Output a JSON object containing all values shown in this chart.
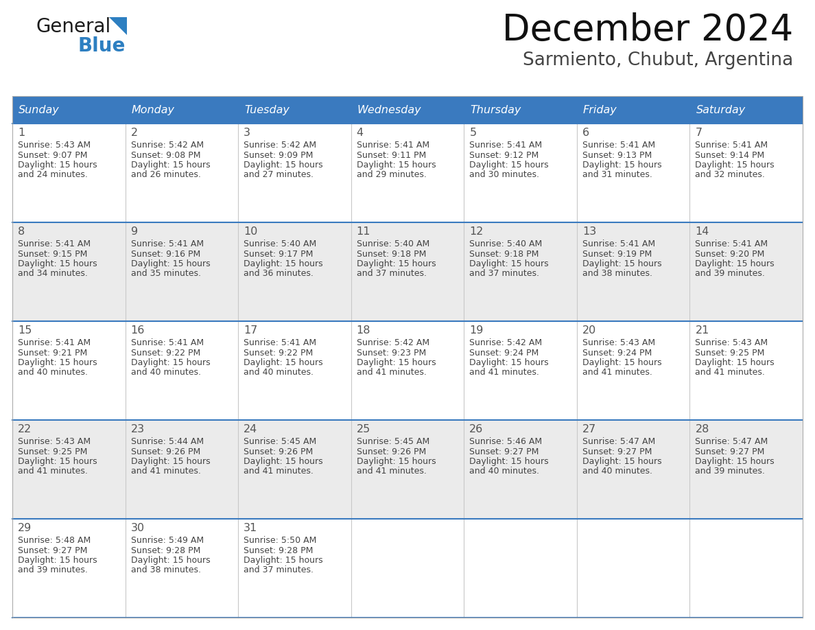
{
  "title": "December 2024",
  "subtitle": "Sarmiento, Chubut, Argentina",
  "header_bg_color": "#3a7abf",
  "header_text_color": "#ffffff",
  "header_font_size": 11.5,
  "day_names": [
    "Sunday",
    "Monday",
    "Tuesday",
    "Wednesday",
    "Thursday",
    "Friday",
    "Saturday"
  ],
  "title_font_size": 38,
  "subtitle_font_size": 19,
  "bg_color": "#ffffff",
  "row_bg_even": "#ebebeb",
  "row_bg_odd": "#ffffff",
  "separator_color": "#3a7abf",
  "cell_text_color": "#444444",
  "cell_day_color": "#555555",
  "logo_text_general": "General",
  "logo_text_blue": "Blue",
  "logo_triangle_color": "#2d7fc1",
  "logo_general_color": "#1a1a1a",
  "logo_blue_color": "#2d7fc1",
  "days": [
    {
      "day": 1,
      "row": 0,
      "col": 0,
      "sunrise": "5:43 AM",
      "sunset": "9:07 PM",
      "daylight_hours": 15,
      "daylight_minutes": 24
    },
    {
      "day": 2,
      "row": 0,
      "col": 1,
      "sunrise": "5:42 AM",
      "sunset": "9:08 PM",
      "daylight_hours": 15,
      "daylight_minutes": 26
    },
    {
      "day": 3,
      "row": 0,
      "col": 2,
      "sunrise": "5:42 AM",
      "sunset": "9:09 PM",
      "daylight_hours": 15,
      "daylight_minutes": 27
    },
    {
      "day": 4,
      "row": 0,
      "col": 3,
      "sunrise": "5:41 AM",
      "sunset": "9:11 PM",
      "daylight_hours": 15,
      "daylight_minutes": 29
    },
    {
      "day": 5,
      "row": 0,
      "col": 4,
      "sunrise": "5:41 AM",
      "sunset": "9:12 PM",
      "daylight_hours": 15,
      "daylight_minutes": 30
    },
    {
      "day": 6,
      "row": 0,
      "col": 5,
      "sunrise": "5:41 AM",
      "sunset": "9:13 PM",
      "daylight_hours": 15,
      "daylight_minutes": 31
    },
    {
      "day": 7,
      "row": 0,
      "col": 6,
      "sunrise": "5:41 AM",
      "sunset": "9:14 PM",
      "daylight_hours": 15,
      "daylight_minutes": 32
    },
    {
      "day": 8,
      "row": 1,
      "col": 0,
      "sunrise": "5:41 AM",
      "sunset": "9:15 PM",
      "daylight_hours": 15,
      "daylight_minutes": 34
    },
    {
      "day": 9,
      "row": 1,
      "col": 1,
      "sunrise": "5:41 AM",
      "sunset": "9:16 PM",
      "daylight_hours": 15,
      "daylight_minutes": 35
    },
    {
      "day": 10,
      "row": 1,
      "col": 2,
      "sunrise": "5:40 AM",
      "sunset": "9:17 PM",
      "daylight_hours": 15,
      "daylight_minutes": 36
    },
    {
      "day": 11,
      "row": 1,
      "col": 3,
      "sunrise": "5:40 AM",
      "sunset": "9:18 PM",
      "daylight_hours": 15,
      "daylight_minutes": 37
    },
    {
      "day": 12,
      "row": 1,
      "col": 4,
      "sunrise": "5:40 AM",
      "sunset": "9:18 PM",
      "daylight_hours": 15,
      "daylight_minutes": 37
    },
    {
      "day": 13,
      "row": 1,
      "col": 5,
      "sunrise": "5:41 AM",
      "sunset": "9:19 PM",
      "daylight_hours": 15,
      "daylight_minutes": 38
    },
    {
      "day": 14,
      "row": 1,
      "col": 6,
      "sunrise": "5:41 AM",
      "sunset": "9:20 PM",
      "daylight_hours": 15,
      "daylight_minutes": 39
    },
    {
      "day": 15,
      "row": 2,
      "col": 0,
      "sunrise": "5:41 AM",
      "sunset": "9:21 PM",
      "daylight_hours": 15,
      "daylight_minutes": 40
    },
    {
      "day": 16,
      "row": 2,
      "col": 1,
      "sunrise": "5:41 AM",
      "sunset": "9:22 PM",
      "daylight_hours": 15,
      "daylight_minutes": 40
    },
    {
      "day": 17,
      "row": 2,
      "col": 2,
      "sunrise": "5:41 AM",
      "sunset": "9:22 PM",
      "daylight_hours": 15,
      "daylight_minutes": 40
    },
    {
      "day": 18,
      "row": 2,
      "col": 3,
      "sunrise": "5:42 AM",
      "sunset": "9:23 PM",
      "daylight_hours": 15,
      "daylight_minutes": 41
    },
    {
      "day": 19,
      "row": 2,
      "col": 4,
      "sunrise": "5:42 AM",
      "sunset": "9:24 PM",
      "daylight_hours": 15,
      "daylight_minutes": 41
    },
    {
      "day": 20,
      "row": 2,
      "col": 5,
      "sunrise": "5:43 AM",
      "sunset": "9:24 PM",
      "daylight_hours": 15,
      "daylight_minutes": 41
    },
    {
      "day": 21,
      "row": 2,
      "col": 6,
      "sunrise": "5:43 AM",
      "sunset": "9:25 PM",
      "daylight_hours": 15,
      "daylight_minutes": 41
    },
    {
      "day": 22,
      "row": 3,
      "col": 0,
      "sunrise": "5:43 AM",
      "sunset": "9:25 PM",
      "daylight_hours": 15,
      "daylight_minutes": 41
    },
    {
      "day": 23,
      "row": 3,
      "col": 1,
      "sunrise": "5:44 AM",
      "sunset": "9:26 PM",
      "daylight_hours": 15,
      "daylight_minutes": 41
    },
    {
      "day": 24,
      "row": 3,
      "col": 2,
      "sunrise": "5:45 AM",
      "sunset": "9:26 PM",
      "daylight_hours": 15,
      "daylight_minutes": 41
    },
    {
      "day": 25,
      "row": 3,
      "col": 3,
      "sunrise": "5:45 AM",
      "sunset": "9:26 PM",
      "daylight_hours": 15,
      "daylight_minutes": 41
    },
    {
      "day": 26,
      "row": 3,
      "col": 4,
      "sunrise": "5:46 AM",
      "sunset": "9:27 PM",
      "daylight_hours": 15,
      "daylight_minutes": 40
    },
    {
      "day": 27,
      "row": 3,
      "col": 5,
      "sunrise": "5:47 AM",
      "sunset": "9:27 PM",
      "daylight_hours": 15,
      "daylight_minutes": 40
    },
    {
      "day": 28,
      "row": 3,
      "col": 6,
      "sunrise": "5:47 AM",
      "sunset": "9:27 PM",
      "daylight_hours": 15,
      "daylight_minutes": 39
    },
    {
      "day": 29,
      "row": 4,
      "col": 0,
      "sunrise": "5:48 AM",
      "sunset": "9:27 PM",
      "daylight_hours": 15,
      "daylight_minutes": 39
    },
    {
      "day": 30,
      "row": 4,
      "col": 1,
      "sunrise": "5:49 AM",
      "sunset": "9:28 PM",
      "daylight_hours": 15,
      "daylight_minutes": 38
    },
    {
      "day": 31,
      "row": 4,
      "col": 2,
      "sunrise": "5:50 AM",
      "sunset": "9:28 PM",
      "daylight_hours": 15,
      "daylight_minutes": 37
    }
  ],
  "fig_width": 11.88,
  "fig_height": 9.18,
  "dpi": 100
}
